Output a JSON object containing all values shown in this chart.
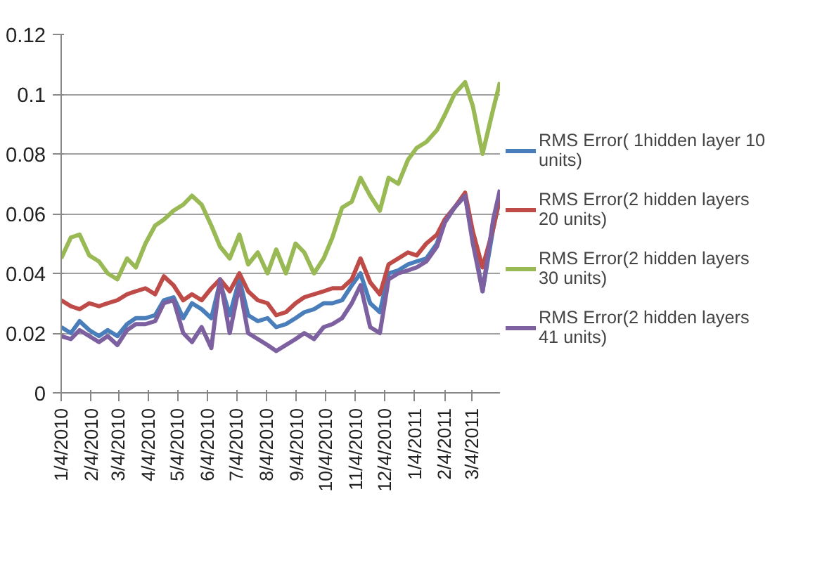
{
  "chart_data": {
    "type": "line",
    "x": [
      "2010-01-04",
      "2010-01-14",
      "2010-01-23",
      "2010-02-02",
      "2010-02-12",
      "2010-02-21",
      "2010-03-03",
      "2010-03-13",
      "2010-03-22",
      "2010-04-01",
      "2010-04-11",
      "2010-04-20",
      "2010-04-30",
      "2010-05-10",
      "2010-05-19",
      "2010-05-29",
      "2010-06-08",
      "2010-06-17",
      "2010-06-27",
      "2010-07-07",
      "2010-07-16",
      "2010-07-26",
      "2010-08-05",
      "2010-08-14",
      "2010-08-24",
      "2010-09-03",
      "2010-09-12",
      "2010-09-22",
      "2010-10-02",
      "2010-10-11",
      "2010-10-21",
      "2010-10-31",
      "2010-11-09",
      "2010-11-19",
      "2010-11-29",
      "2010-12-08",
      "2010-12-18",
      "2010-12-28",
      "2011-01-06",
      "2011-01-16",
      "2011-01-27",
      "2011-02-04",
      "2011-02-14",
      "2011-02-25",
      "2011-03-05",
      "2011-03-15",
      "2011-03-26",
      "2011-04-02"
    ],
    "series": [
      {
        "name": "RMS Error( 1hidden layer 10 units)",
        "color": "#4a7ebb",
        "values": [
          0.022,
          0.02,
          0.024,
          0.021,
          0.019,
          0.021,
          0.019,
          0.023,
          0.025,
          0.025,
          0.026,
          0.031,
          0.032,
          0.025,
          0.03,
          0.028,
          0.025,
          0.037,
          0.026,
          0.038,
          0.026,
          0.024,
          0.025,
          0.022,
          0.023,
          0.025,
          0.027,
          0.028,
          0.03,
          0.03,
          0.031,
          0.036,
          0.04,
          0.03,
          0.027,
          0.04,
          0.041,
          0.043,
          0.044,
          0.045,
          0.05,
          0.058,
          0.062,
          0.066,
          0.052,
          0.034,
          0.055,
          0.065
        ]
      },
      {
        "name": "RMS Error(2 hidden layers 20 units)",
        "color": "#be4b48",
        "values": [
          0.031,
          0.029,
          0.028,
          0.03,
          0.029,
          0.03,
          0.031,
          0.033,
          0.034,
          0.035,
          0.033,
          0.039,
          0.036,
          0.031,
          0.033,
          0.031,
          0.035,
          0.038,
          0.034,
          0.04,
          0.034,
          0.031,
          0.03,
          0.026,
          0.027,
          0.03,
          0.032,
          0.033,
          0.034,
          0.035,
          0.035,
          0.038,
          0.045,
          0.037,
          0.033,
          0.043,
          0.045,
          0.047,
          0.046,
          0.05,
          0.053,
          0.058,
          0.062,
          0.067,
          0.054,
          0.042,
          0.055,
          0.066
        ]
      },
      {
        "name": "RMS Error(2 hidden layers 30 units)",
        "color": "#98b954",
        "values": [
          0.045,
          0.052,
          0.053,
          0.046,
          0.044,
          0.04,
          0.038,
          0.045,
          0.042,
          0.05,
          0.056,
          0.058,
          0.061,
          0.063,
          0.066,
          0.063,
          0.056,
          0.049,
          0.045,
          0.053,
          0.043,
          0.047,
          0.04,
          0.048,
          0.04,
          0.05,
          0.047,
          0.04,
          0.045,
          0.052,
          0.062,
          0.064,
          0.072,
          0.066,
          0.061,
          0.072,
          0.07,
          0.078,
          0.082,
          0.084,
          0.088,
          0.093,
          0.1,
          0.104,
          0.096,
          0.08,
          0.095,
          0.104
        ]
      },
      {
        "name": "RMS Error(2 hidden layers 41 units)",
        "color": "#7d60a0",
        "values": [
          0.019,
          0.018,
          0.021,
          0.019,
          0.017,
          0.019,
          0.016,
          0.021,
          0.023,
          0.023,
          0.024,
          0.03,
          0.031,
          0.02,
          0.017,
          0.022,
          0.015,
          0.038,
          0.02,
          0.036,
          0.02,
          0.018,
          0.016,
          0.014,
          0.016,
          0.018,
          0.02,
          0.018,
          0.022,
          0.023,
          0.025,
          0.03,
          0.036,
          0.022,
          0.02,
          0.038,
          0.04,
          0.041,
          0.042,
          0.044,
          0.049,
          0.057,
          0.062,
          0.066,
          0.05,
          0.034,
          0.058,
          0.068
        ]
      }
    ],
    "xlim": [
      "2010-01-04",
      "2011-04-02"
    ],
    "xticks": [
      {
        "value": "2010-01-04",
        "label": "1/4/2010"
      },
      {
        "value": "2010-02-04",
        "label": "2/4/2010"
      },
      {
        "value": "2010-03-04",
        "label": "3/4/2010"
      },
      {
        "value": "2010-04-04",
        "label": "4/4/2010"
      },
      {
        "value": "2010-05-04",
        "label": "5/4/2010"
      },
      {
        "value": "2010-06-04",
        "label": "6/4/2010"
      },
      {
        "value": "2010-07-04",
        "label": "7/4/2010"
      },
      {
        "value": "2010-08-04",
        "label": "8/4/2010"
      },
      {
        "value": "2010-09-04",
        "label": "9/4/2010"
      },
      {
        "value": "2010-10-04",
        "label": "10/4/2010"
      },
      {
        "value": "2010-11-04",
        "label": "11/4/2010"
      },
      {
        "value": "2010-12-04",
        "label": "12/4/2010"
      },
      {
        "value": "2011-01-04",
        "label": "1/4/2011"
      },
      {
        "value": "2011-02-04",
        "label": "2/4/2011"
      },
      {
        "value": "2011-03-04",
        "label": "3/4/2011"
      }
    ],
    "ylim": [
      0,
      0.12
    ],
    "yticks": [
      0,
      0.02,
      0.04,
      0.06,
      0.08,
      0.1,
      0.12
    ],
    "grid": "y",
    "legend": "right"
  }
}
